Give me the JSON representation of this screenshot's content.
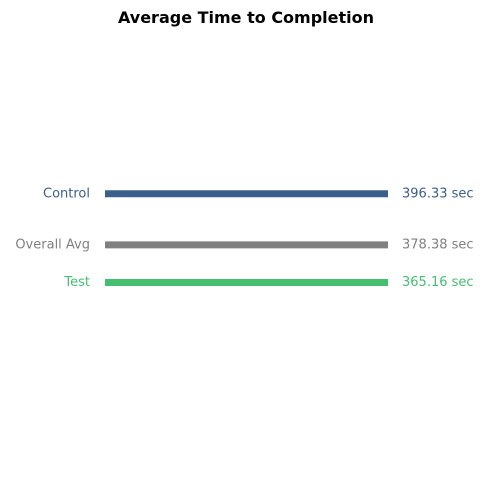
{
  "chart_data": {
    "type": "line",
    "title": "Average Time to Completion",
    "xlabel": "",
    "ylabel": "",
    "unit": "sec",
    "ylim": [
      300,
      450
    ],
    "grid": false,
    "legend": "none",
    "series": [
      {
        "name": "Control",
        "value": 396.33,
        "value_label": "396.33 sec",
        "color": "#3b5f8c"
      },
      {
        "name": "Overall Avg",
        "value": 378.38,
        "value_label": "378.38 sec",
        "color": "#808080"
      },
      {
        "name": "Test",
        "value": 365.16,
        "value_label": "365.16 sec",
        "color": "#44bf70"
      }
    ]
  }
}
